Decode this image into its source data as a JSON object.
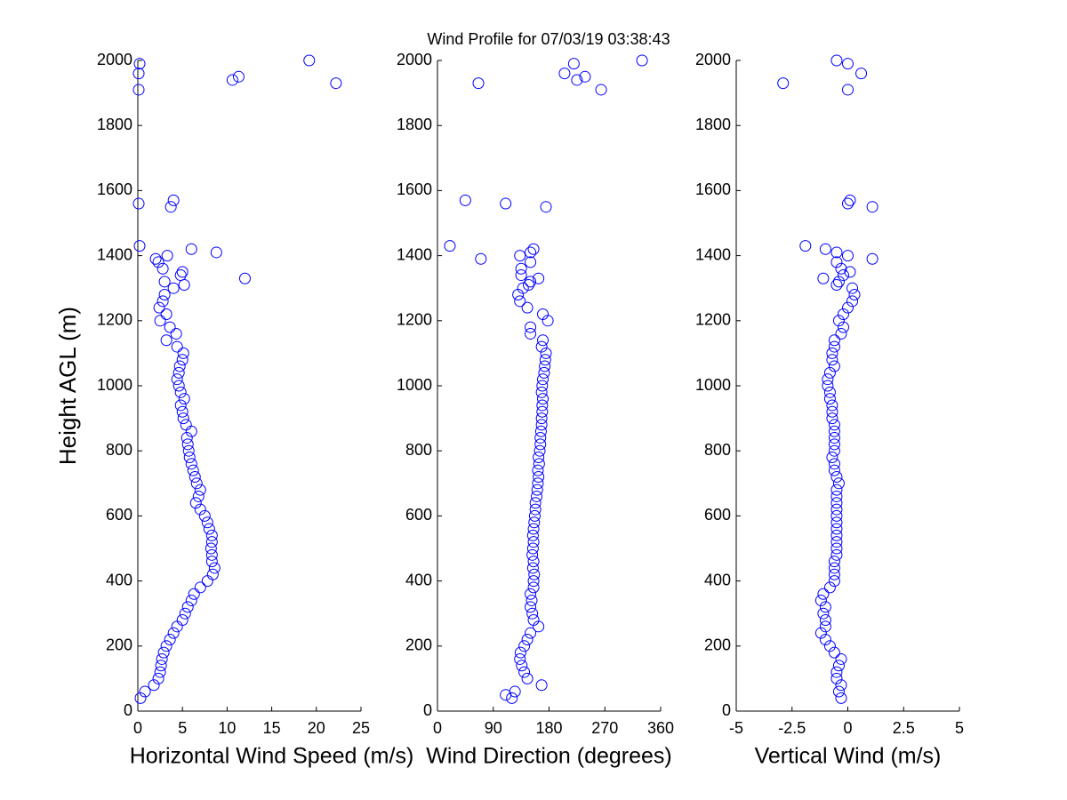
{
  "title": "Wind Profile for  07/03/19 03:38:43",
  "chart_data": [
    {
      "type": "scatter",
      "x_label": "Horizontal Wind Speed (m/s)",
      "y_label": "Height AGL (m)",
      "xlim": [
        0,
        25
      ],
      "xticks": [
        0,
        5,
        10,
        15,
        20,
        25
      ],
      "ylim": [
        0,
        2000
      ],
      "yticks": [
        0,
        200,
        400,
        600,
        800,
        1000,
        1200,
        1400,
        1600,
        1800,
        2000
      ],
      "series": [
        {
          "color": "#0000ff",
          "x": [
            0.3,
            0.8,
            1.8,
            2.3,
            2.5,
            2.6,
            2.7,
            2.9,
            3.2,
            3.6,
            4.0,
            4.4,
            5.0,
            5.3,
            5.6,
            6.0,
            6.3,
            7.0,
            7.8,
            8.4,
            8.6,
            8.3,
            8.3,
            8.2,
            8.3,
            8.3,
            8.0,
            7.8,
            7.5,
            7.0,
            6.5,
            6.8,
            7.0,
            6.6,
            6.4,
            6.2,
            6.0,
            5.8,
            5.7,
            5.6,
            5.5,
            6.0,
            5.4,
            5.1,
            5.0,
            4.8,
            5.2,
            4.8,
            4.6,
            4.4,
            4.6,
            4.7,
            5.0,
            5.1,
            4.4,
            3.2,
            4.3,
            3.6,
            2.5,
            3.2,
            2.4,
            2.8,
            3.0,
            4.0,
            3.0,
            4.8,
            2.8,
            2.3,
            3.3,
            5.2,
            12.0,
            5.0,
            2.0,
            8.8,
            6.0,
            0.2,
            3.7,
            0.1,
            4.0,
            0.1,
            22.2,
            10.6,
            11.3,
            0.1,
            0.2,
            19.2
          ],
          "y": [
            40,
            60,
            80,
            100,
            120,
            140,
            160,
            180,
            200,
            220,
            240,
            260,
            280,
            300,
            320,
            340,
            360,
            380,
            400,
            420,
            440,
            460,
            480,
            500,
            520,
            540,
            560,
            580,
            600,
            620,
            640,
            660,
            680,
            700,
            720,
            740,
            760,
            780,
            800,
            820,
            840,
            860,
            880,
            900,
            920,
            940,
            960,
            980,
            1000,
            1020,
            1040,
            1060,
            1080,
            1100,
            1120,
            1140,
            1160,
            1180,
            1200,
            1220,
            1240,
            1260,
            1280,
            1300,
            1320,
            1340,
            1360,
            1380,
            1400,
            1310,
            1330,
            1350,
            1390,
            1410,
            1420,
            1430,
            1550,
            1560,
            1570,
            1910,
            1930,
            1940,
            1950,
            1960,
            1990,
            2000
          ]
        }
      ]
    },
    {
      "type": "scatter",
      "x_label": "Wind Direction (degrees)",
      "xlim": [
        0,
        360
      ],
      "xticks": [
        0,
        90,
        180,
        270,
        360
      ],
      "ylim": [
        0,
        2000
      ],
      "yticks": [
        0,
        200,
        400,
        600,
        800,
        1000,
        1200,
        1400,
        1600,
        1800,
        2000
      ],
      "series": [
        {
          "color": "#0000ff",
          "x": [
            120,
            125,
            168,
            145,
            140,
            136,
            133,
            134,
            140,
            145,
            150,
            163,
            155,
            153,
            150,
            152,
            150,
            155,
            155,
            156,
            154,
            155,
            153,
            154,
            155,
            154,
            155,
            156,
            157,
            158,
            158,
            160,
            161,
            162,
            163,
            162,
            164,
            163,
            165,
            166,
            166,
            167,
            168,
            168,
            169,
            169,
            170,
            168,
            169,
            170,
            172,
            173,
            174,
            175,
            168,
            170,
            150,
            150,
            178,
            170,
            145,
            133,
            130,
            138,
            150,
            135,
            135,
            150,
            133,
            110,
            147,
            163,
            70,
            150,
            155,
            20,
            175,
            110,
            45,
            264,
            66,
            225,
            238,
            205,
            220,
            330
          ],
          "y": [
            40,
            60,
            80,
            100,
            120,
            140,
            160,
            180,
            200,
            220,
            240,
            260,
            280,
            300,
            320,
            340,
            360,
            380,
            400,
            420,
            440,
            460,
            480,
            500,
            520,
            540,
            560,
            580,
            600,
            620,
            640,
            660,
            680,
            700,
            720,
            740,
            760,
            780,
            800,
            820,
            840,
            860,
            880,
            900,
            920,
            940,
            960,
            980,
            1000,
            1020,
            1040,
            1060,
            1080,
            1100,
            1120,
            1140,
            1160,
            1180,
            1200,
            1220,
            1240,
            1260,
            1280,
            1300,
            1320,
            1340,
            1360,
            1380,
            1400,
            50,
            1310,
            1330,
            1390,
            1410,
            1420,
            1430,
            1550,
            1560,
            1570,
            1910,
            1930,
            1940,
            1950,
            1960,
            1990,
            2000
          ]
        }
      ]
    },
    {
      "type": "scatter",
      "x_label": "Vertical Wind (m/s)",
      "xlim": [
        -5,
        5
      ],
      "xticks": [
        -5,
        -2.5,
        0,
        2.5,
        5
      ],
      "ylim": [
        0,
        2000
      ],
      "yticks": [
        0,
        200,
        400,
        600,
        800,
        1000,
        1200,
        1400,
        1600,
        1800,
        2000
      ],
      "series": [
        {
          "color": "#0000ff",
          "x": [
            -0.3,
            -0.4,
            -0.3,
            -0.5,
            -0.5,
            -0.4,
            -0.3,
            -0.6,
            -0.8,
            -1.0,
            -1.2,
            -1.0,
            -1.0,
            -1.1,
            -1.0,
            -1.2,
            -1.1,
            -0.8,
            -0.6,
            -0.6,
            -0.6,
            -0.6,
            -0.5,
            -0.5,
            -0.5,
            -0.5,
            -0.5,
            -0.5,
            -0.5,
            -0.5,
            -0.5,
            -0.5,
            -0.5,
            -0.4,
            -0.5,
            -0.6,
            -0.6,
            -0.7,
            -0.6,
            -0.6,
            -0.6,
            -0.6,
            -0.6,
            -0.7,
            -0.7,
            -0.7,
            -0.8,
            -0.8,
            -0.9,
            -0.9,
            -0.8,
            -0.6,
            -0.7,
            -0.7,
            -0.6,
            -0.6,
            -0.3,
            -0.2,
            -0.4,
            -0.2,
            0.0,
            0.2,
            0.3,
            0.2,
            -0.4,
            -0.2,
            -0.3,
            -0.5,
            0.0,
            -0.5,
            -1.1,
            0.1,
            1.1,
            -0.5,
            -1.0,
            -1.9,
            1.1,
            0.0,
            0.1,
            0.0,
            -2.9,
            0.6,
            0.0,
            -0.5
          ],
          "y": [
            40,
            60,
            80,
            100,
            120,
            140,
            160,
            180,
            200,
            220,
            240,
            260,
            280,
            300,
            320,
            340,
            360,
            380,
            400,
            420,
            440,
            460,
            480,
            500,
            520,
            540,
            560,
            580,
            600,
            620,
            640,
            660,
            680,
            700,
            720,
            740,
            760,
            780,
            800,
            820,
            840,
            860,
            880,
            900,
            920,
            940,
            960,
            980,
            1000,
            1020,
            1040,
            1060,
            1080,
            1100,
            1120,
            1140,
            1160,
            1180,
            1200,
            1220,
            1240,
            1260,
            1280,
            1300,
            1320,
            1340,
            1360,
            1380,
            1400,
            1310,
            1330,
            1350,
            1390,
            1410,
            1420,
            1430,
            1550,
            1560,
            1570,
            1910,
            1930,
            1960,
            1990,
            2000
          ]
        }
      ]
    }
  ]
}
